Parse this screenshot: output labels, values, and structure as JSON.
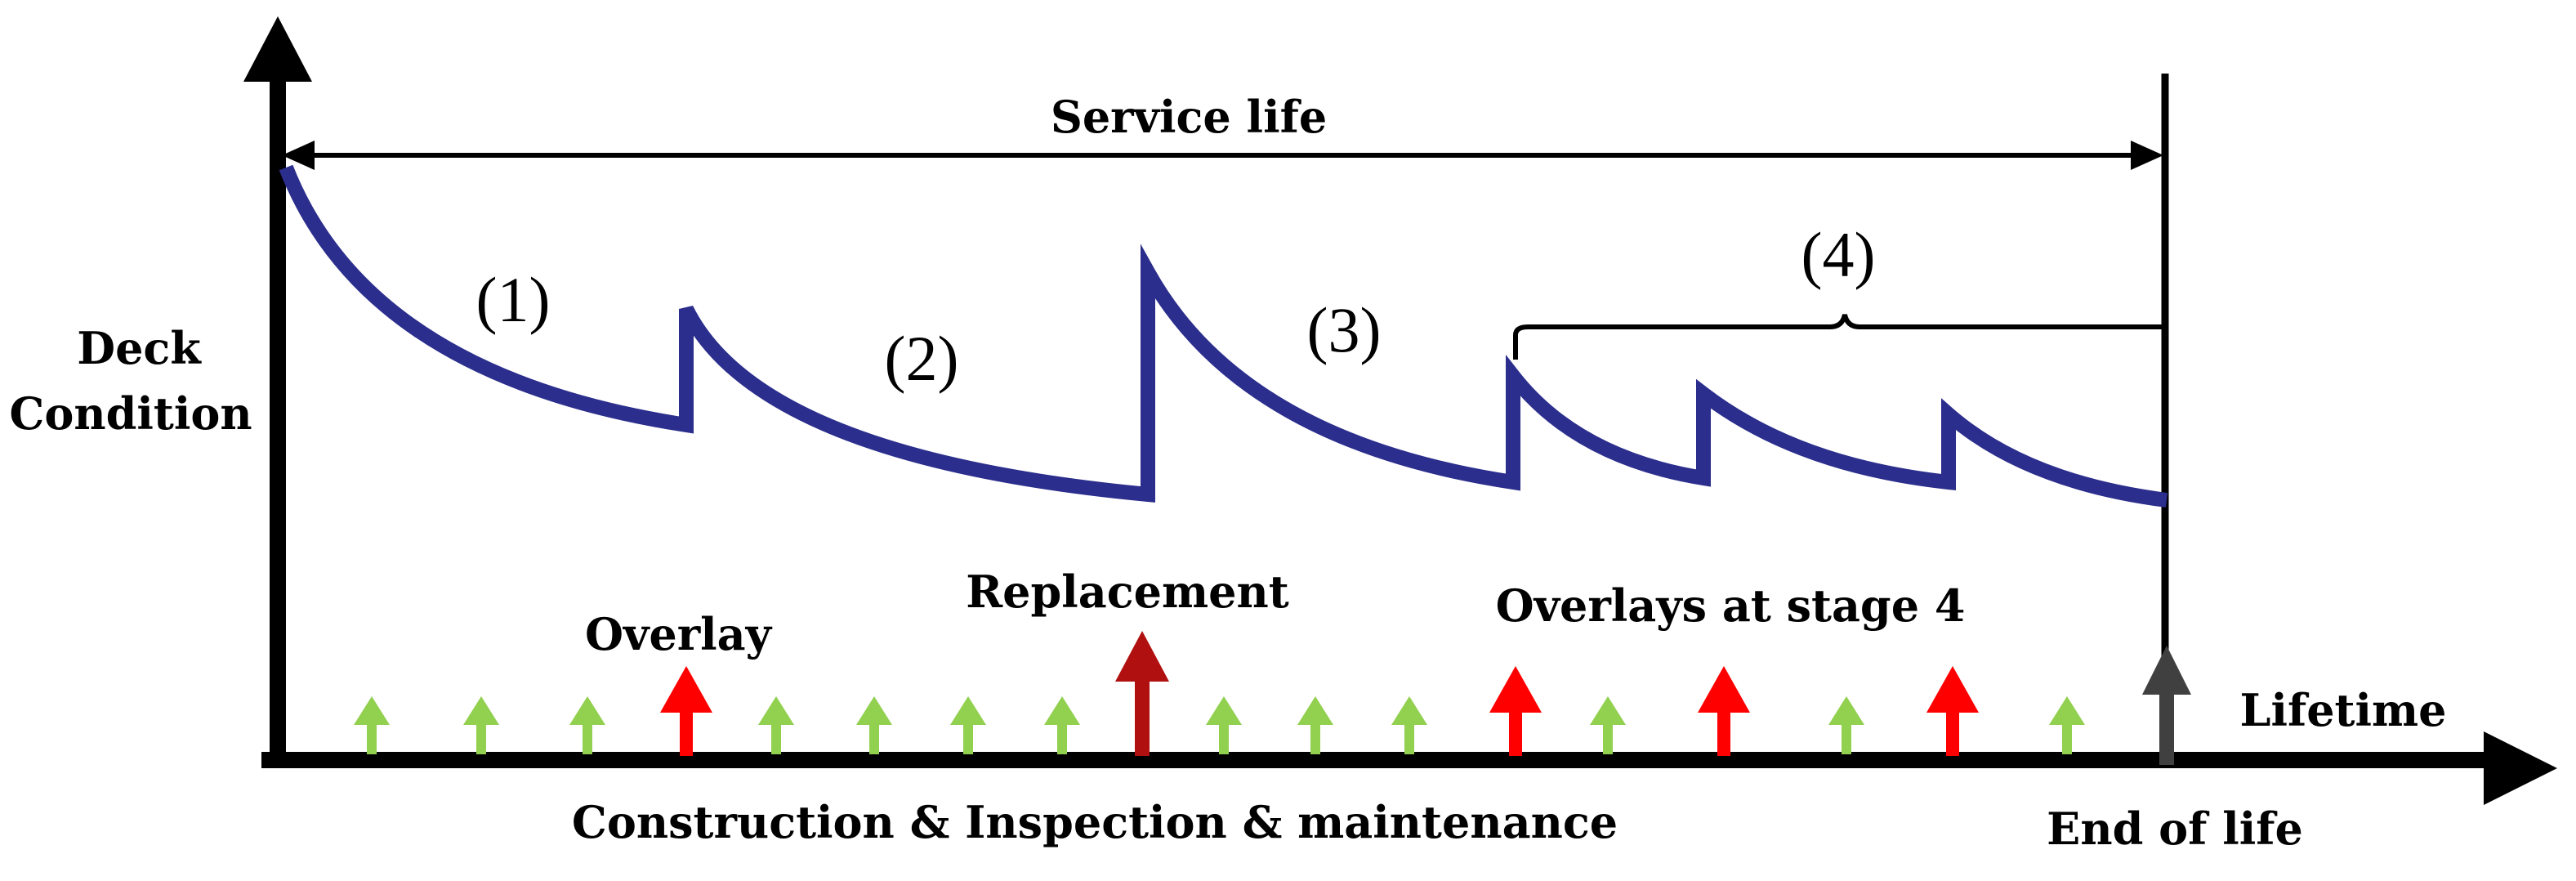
{
  "labels": {
    "service_life": "Service life",
    "y_axis_line1": "Deck",
    "y_axis_line2": "Condition",
    "x_axis": "Lifetime",
    "overlay": "Overlay",
    "replacement": "Replacement",
    "overlays_stage4": "Overlays at stage 4",
    "bottom": "Construction & Inspection & maintenance",
    "end_of_life": "End of life"
  },
  "stages": [
    "(1)",
    "(2)",
    "(3)",
    "(4)"
  ],
  "colors": {
    "curve": "#2b2e8c",
    "inspection_arrow": "#92d050",
    "overlay_arrow": "#ff0000",
    "replacement_arrow": "#b01010",
    "end_arrow": "#404040",
    "axis": "#000000"
  }
}
